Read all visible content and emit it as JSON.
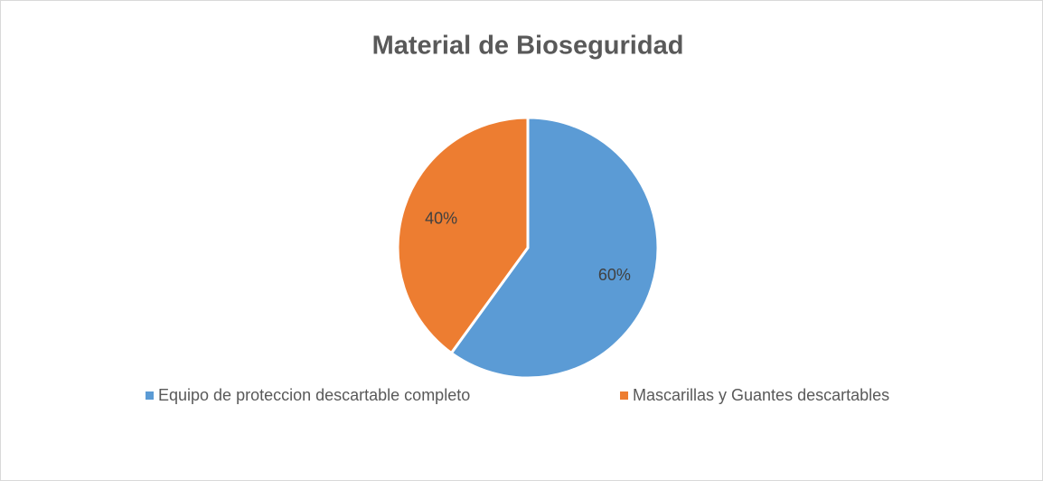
{
  "chart_data": {
    "type": "pie",
    "title": "Material de Bioseguridad",
    "categories": [
      "Equipo de proteccion descartable completo",
      "Mascarillas y Guantes descartables"
    ],
    "values": [
      60,
      40
    ],
    "value_labels": [
      "60%",
      "40%"
    ],
    "colors": [
      "#5b9bd5",
      "#ed7d31"
    ],
    "legend": "bottom"
  }
}
